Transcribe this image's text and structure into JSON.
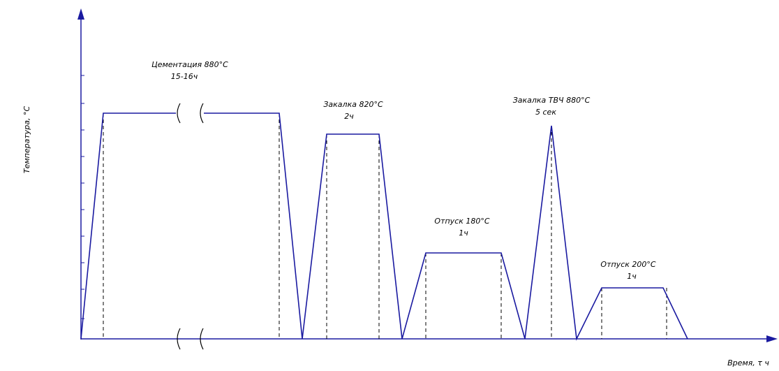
{
  "axes": {
    "y_label": "Температура, °С",
    "x_label": "Время, τ ч"
  },
  "annotations": [
    {
      "lines": [
        "Цементация 880°С",
        "15-16ч"
      ]
    },
    {
      "lines": [
        "Закалка 820°С",
        "2ч"
      ]
    },
    {
      "lines": [
        "Отпуск 180°С",
        "1ч"
      ]
    },
    {
      "lines": [
        "Закалка ТВЧ 880°С",
        "5 сек"
      ]
    },
    {
      "lines": [
        "Отпуск 200°С",
        "1ч"
      ]
    }
  ]
}
